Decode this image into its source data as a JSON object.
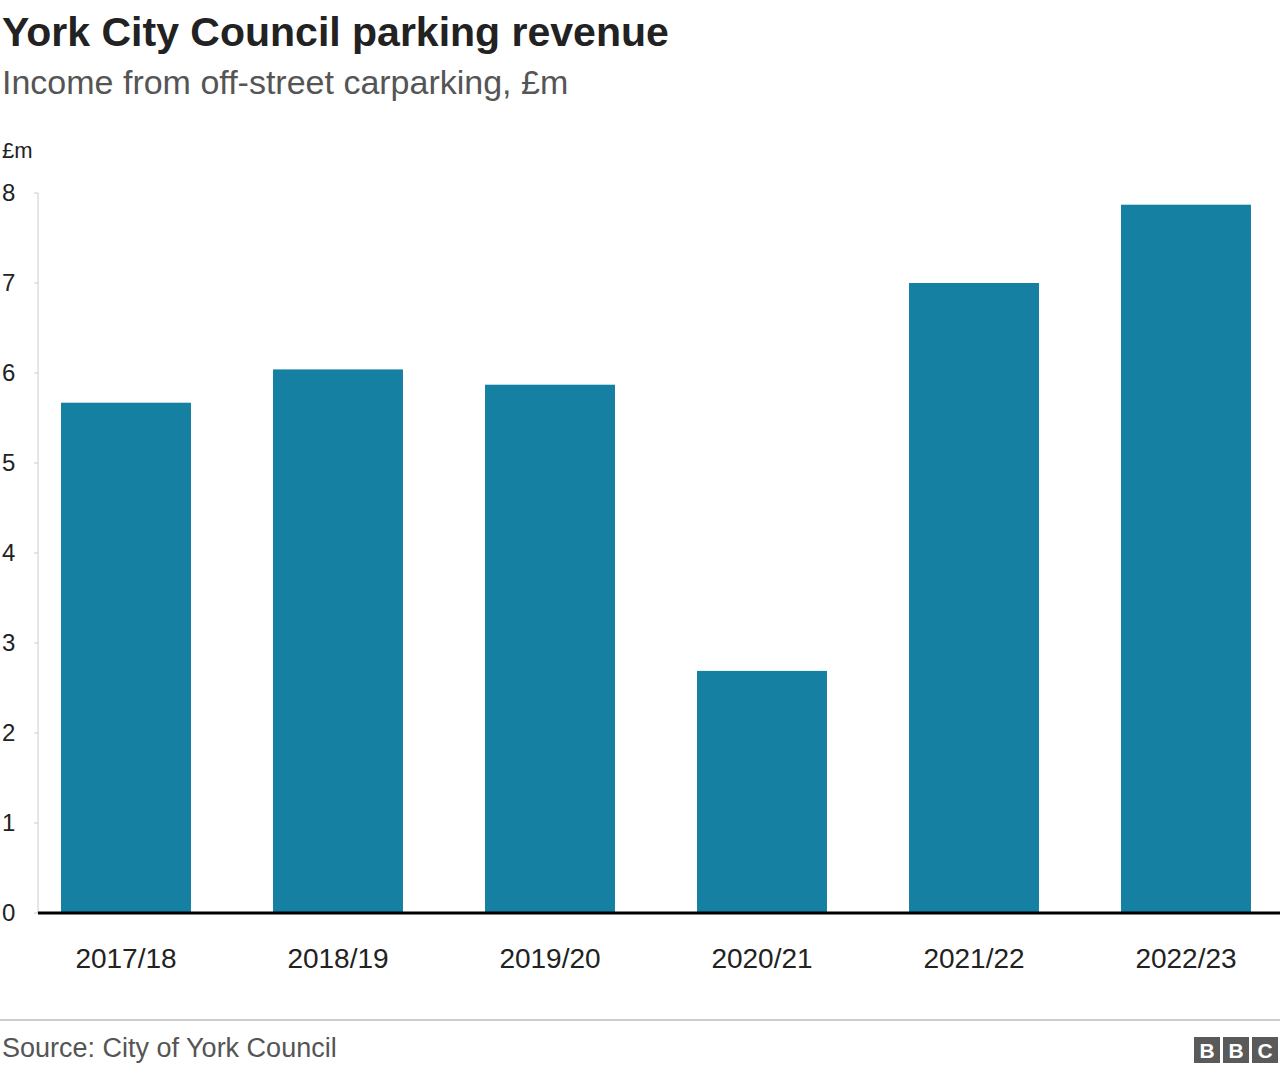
{
  "chart_data": {
    "type": "bar",
    "title": "York City Council parking revenue",
    "subtitle": "Income from off-street carparking, £m",
    "y_label": "£m",
    "categories": [
      "2017/18",
      "2018/19",
      "2019/20",
      "2020/21",
      "2021/22",
      "2022/23"
    ],
    "values": [
      5.67,
      6.04,
      5.87,
      2.69,
      7.0,
      7.87
    ],
    "color": "#1580a2",
    "ylim": [
      0,
      8
    ],
    "yticks": [
      0,
      1,
      2,
      3,
      4,
      5,
      6,
      7,
      8
    ],
    "grid": false,
    "source": "Source: City of York Council",
    "logo": "BBC"
  }
}
